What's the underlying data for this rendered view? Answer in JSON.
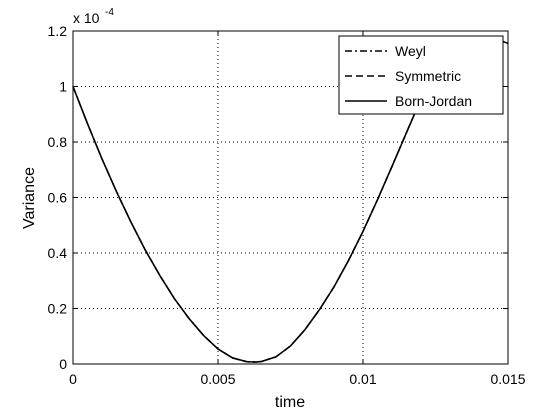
{
  "chart_data": {
    "type": "line",
    "title": "",
    "xlabel": "time",
    "ylabel": "Variance",
    "xlim": [
      0,
      0.015
    ],
    "ylim": [
      0,
      0.00012
    ],
    "y_exponent_label": "x 10",
    "y_exponent_power": "-4",
    "xticks": [
      0,
      0.005,
      0.01,
      0.015
    ],
    "xtick_labels": [
      "0",
      "0.005",
      "0.01",
      "0.015"
    ],
    "yticks": [
      0,
      2e-05,
      4e-05,
      6e-05,
      8e-05,
      0.0001,
      0.00012
    ],
    "ytick_labels": [
      "0",
      "0.2",
      "0.4",
      "0.6",
      "0.8",
      "1",
      "1.2"
    ],
    "grid": true,
    "legend_position": "top-right",
    "series": [
      {
        "name": "Weyl",
        "line_style": "dash-dot",
        "color": "#000000",
        "x": [
          0,
          0.0005,
          0.001,
          0.0015,
          0.002,
          0.0025,
          0.003,
          0.0035,
          0.004,
          0.0045,
          0.005,
          0.0055,
          0.006,
          0.0063,
          0.0065,
          0.007,
          0.0075,
          0.008,
          0.0085,
          0.009,
          0.0095,
          0.01,
          0.0105,
          0.011,
          0.0115,
          0.012,
          0.0125,
          0.013,
          0.0135,
          0.014,
          0.0143,
          0.0146,
          0.015
        ],
        "y": [
          0.0001,
          8.66e-05,
          7.39e-05,
          6.21e-05,
          5.11e-05,
          4.09e-05,
          3.18e-05,
          2.35e-05,
          1.64e-05,
          1.03e-05,
          5.4e-06,
          2.2e-06,
          8e-07,
          7e-07,
          9e-07,
          2.6e-06,
          6.5e-06,
          1.24e-05,
          1.96e-05,
          2.78e-05,
          3.73e-05,
          4.78e-05,
          5.92e-05,
          7.12e-05,
          8.34e-05,
          9.55e-05,
          0.0001062,
          0.000113,
          0.0001158,
          0.000117,
          0.0001173,
          0.0001172,
          0.0001155
        ]
      },
      {
        "name": "Symmetric",
        "line_style": "dashed",
        "color": "#000000",
        "x": [
          0,
          0.0005,
          0.001,
          0.0015,
          0.002,
          0.0025,
          0.003,
          0.0035,
          0.004,
          0.0045,
          0.005,
          0.0055,
          0.006,
          0.0063,
          0.0065,
          0.007,
          0.0075,
          0.008,
          0.0085,
          0.009,
          0.0095,
          0.01,
          0.0105,
          0.011,
          0.0115,
          0.012,
          0.0125,
          0.013,
          0.0135,
          0.014,
          0.0143,
          0.0146,
          0.015
        ],
        "y": [
          0.0001,
          8.66e-05,
          7.39e-05,
          6.21e-05,
          5.11e-05,
          4.09e-05,
          3.18e-05,
          2.35e-05,
          1.64e-05,
          1.03e-05,
          5.4e-06,
          2.2e-06,
          8e-07,
          7e-07,
          9e-07,
          2.6e-06,
          6.5e-06,
          1.24e-05,
          1.96e-05,
          2.78e-05,
          3.73e-05,
          4.78e-05,
          5.92e-05,
          7.12e-05,
          8.34e-05,
          9.55e-05,
          0.0001062,
          0.000113,
          0.0001158,
          0.000117,
          0.0001173,
          0.0001172,
          0.0001155
        ]
      },
      {
        "name": "Born-Jordan",
        "line_style": "solid",
        "color": "#000000",
        "x": [
          0,
          0.0005,
          0.001,
          0.0015,
          0.002,
          0.0025,
          0.003,
          0.0035,
          0.004,
          0.0045,
          0.005,
          0.0055,
          0.006,
          0.0063,
          0.0065,
          0.007,
          0.0075,
          0.008,
          0.0085,
          0.009,
          0.0095,
          0.01,
          0.0105,
          0.011,
          0.0115,
          0.012,
          0.0125,
          0.013,
          0.0135,
          0.014,
          0.0143,
          0.0146,
          0.015
        ],
        "y": [
          0.0001,
          8.66e-05,
          7.39e-05,
          6.21e-05,
          5.11e-05,
          4.09e-05,
          3.18e-05,
          2.35e-05,
          1.64e-05,
          1.03e-05,
          5.4e-06,
          2.2e-06,
          8e-07,
          7e-07,
          9e-07,
          2.6e-06,
          6.5e-06,
          1.24e-05,
          1.96e-05,
          2.78e-05,
          3.73e-05,
          4.78e-05,
          5.92e-05,
          7.12e-05,
          8.34e-05,
          9.55e-05,
          0.0001062,
          0.000113,
          0.0001158,
          0.000117,
          0.0001173,
          0.0001172,
          0.0001155
        ]
      }
    ]
  }
}
